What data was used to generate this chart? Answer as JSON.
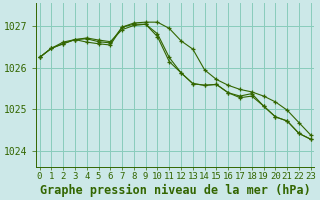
{
  "background_color": "#cce8e8",
  "grid_color": "#88ccbb",
  "line_color": "#336600",
  "xlabel": "Graphe pression niveau de la mer (hPa)",
  "xlabel_fontsize": 8.5,
  "ytick_labels": [
    "1024",
    "1025",
    "1026",
    "1027"
  ],
  "ytick_vals": [
    1024,
    1025,
    1026,
    1027
  ],
  "xtick_labels": [
    "0",
    "1",
    "2",
    "3",
    "4",
    "5",
    "6",
    "7",
    "8",
    "9",
    "10",
    "11",
    "12",
    "13",
    "14",
    "15",
    "16",
    "17",
    "18",
    "19",
    "20",
    "21",
    "22",
    "23"
  ],
  "ylim": [
    1023.6,
    1027.55
  ],
  "xlim": [
    -0.3,
    23.3
  ],
  "series1": [
    1026.25,
    1026.47,
    1026.58,
    1026.68,
    1026.62,
    1026.58,
    1026.55,
    1026.98,
    1027.05,
    1027.05,
    1026.82,
    1026.25,
    1025.88,
    1025.62,
    1025.58,
    1025.6,
    1025.4,
    1025.32,
    1025.38,
    1025.08,
    1024.82,
    1024.72,
    1024.42,
    1024.28
  ],
  "series2": [
    1026.25,
    1026.47,
    1026.58,
    1026.68,
    1026.7,
    1026.63,
    1026.6,
    1026.98,
    1027.08,
    1027.1,
    1027.1,
    1026.95,
    1026.65,
    1026.45,
    1025.95,
    1025.72,
    1025.58,
    1025.48,
    1025.42,
    1025.32,
    1025.18,
    1024.98,
    1024.68,
    1024.38
  ],
  "series3": [
    1026.25,
    1026.47,
    1026.62,
    1026.68,
    1026.72,
    1026.67,
    1026.63,
    1026.92,
    1027.02,
    1027.05,
    1026.75,
    1026.15,
    1025.88,
    1025.62,
    1025.58,
    1025.6,
    1025.4,
    1025.28,
    1025.32,
    1025.08,
    1024.82,
    1024.72,
    1024.42,
    1024.28
  ],
  "tick_fontsize": 6.5,
  "ytick_fontsize": 7.0
}
